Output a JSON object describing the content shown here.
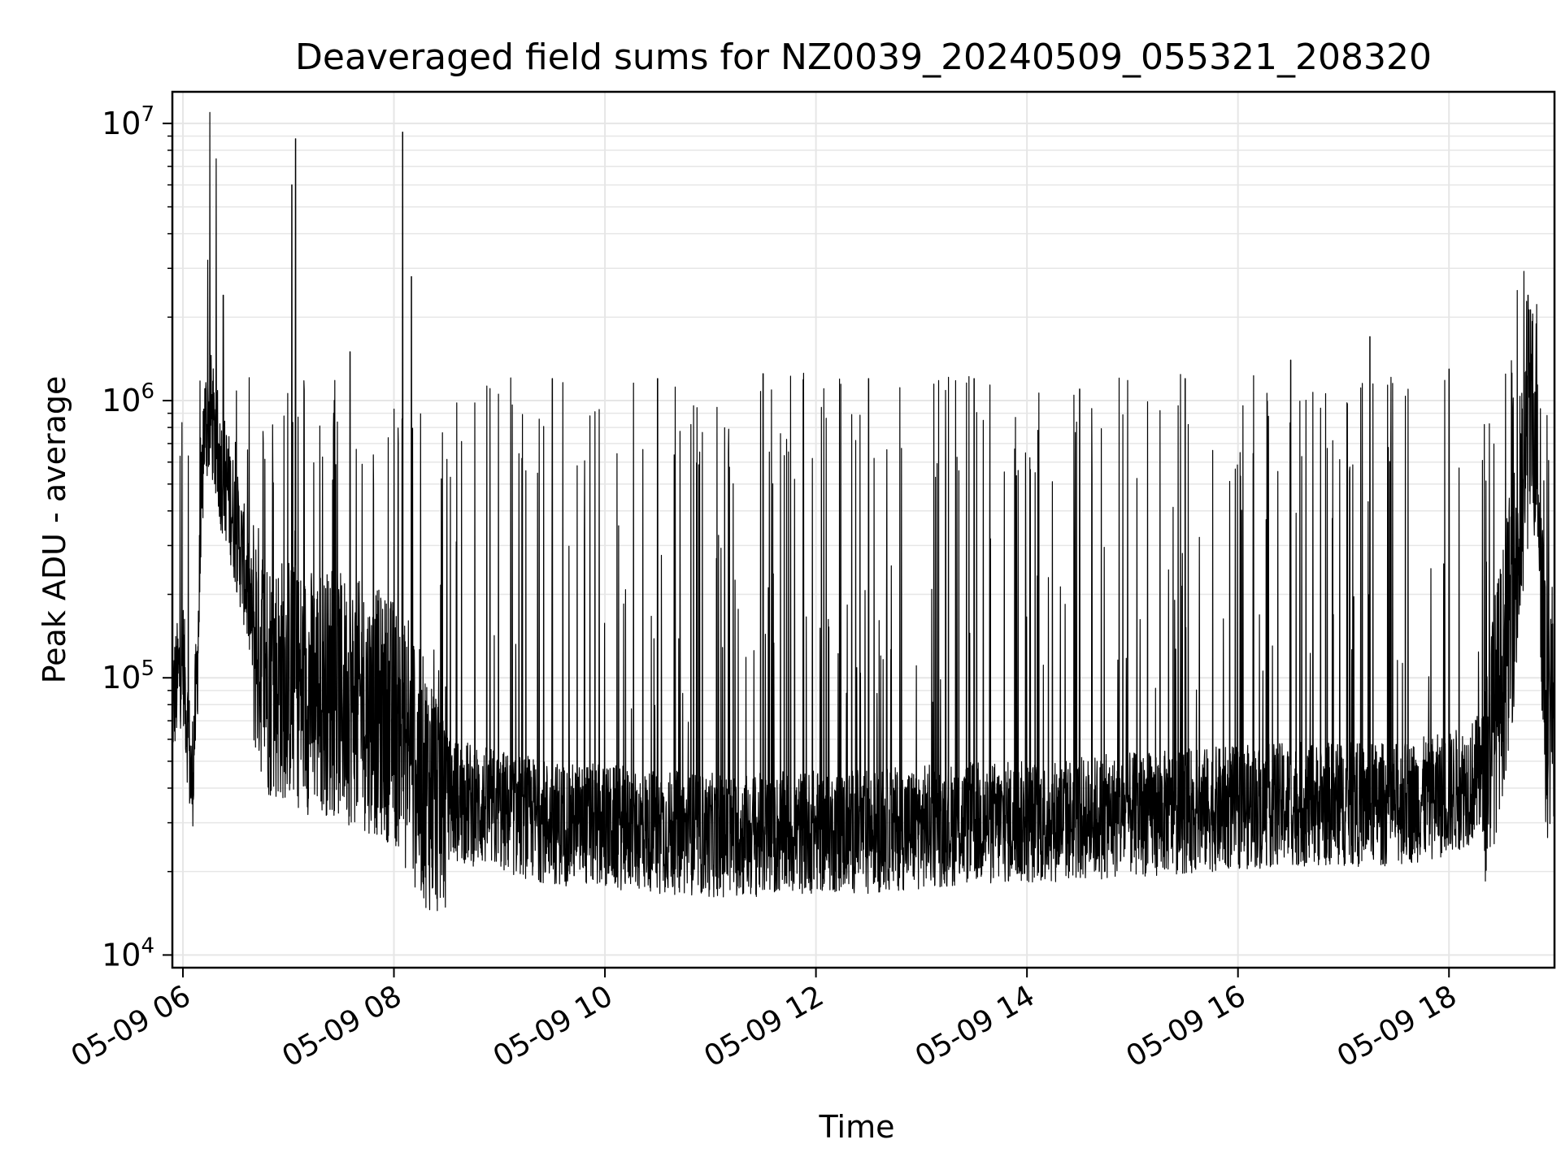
{
  "chart_data": {
    "type": "line",
    "title": "Deaveraged field sums for NZ0039_20240509_055321_208320",
    "xlabel": "Time",
    "ylabel": "Peak ADU - average",
    "yscale": "log",
    "ylim": [
      9000,
      13000000
    ],
    "xlim": [
      "05-09 05:54",
      "05-09 19:00"
    ],
    "grid": true,
    "grid_color": "#e6e6e6",
    "line_color": "#000000",
    "background": "#ffffff",
    "x_ticks": [
      "05-09 06",
      "05-09 08",
      "05-09 10",
      "05-09 12",
      "05-09 14",
      "05-09 16",
      "05-09 18"
    ],
    "y_ticks": [
      {
        "value": 10000,
        "base": "10",
        "exp": "4"
      },
      {
        "value": 100000,
        "base": "10",
        "exp": "5"
      },
      {
        "value": 1000000,
        "base": "10",
        "exp": "6"
      },
      {
        "value": 10000000,
        "base": "10",
        "exp": "7"
      }
    ],
    "series": [
      {
        "x": [
          "05-09 05:54",
          "05-09 06:00",
          "05-09 06:05",
          "05-09 06:08",
          "05-09 06:12",
          "05-09 06:16",
          "05-09 06:20",
          "05-09 06:25",
          "05-09 06:30",
          "05-09 06:35",
          "05-09 06:40",
          "05-09 06:45",
          "05-09 06:50",
          "05-09 07:00",
          "05-09 07:10",
          "05-09 07:20",
          "05-09 07:30",
          "05-09 07:40",
          "05-09 07:50",
          "05-09 08:00",
          "05-09 08:10",
          "05-09 08:20",
          "05-09 08:30",
          "05-09 08:45",
          "05-09 09:00",
          "05-09 09:30",
          "05-09 10:00",
          "05-09 10:30",
          "05-09 11:00",
          "05-09 11:30",
          "05-09 12:00",
          "05-09 12:30",
          "05-09 13:00",
          "05-09 13:30",
          "05-09 14:00",
          "05-09 14:30",
          "05-09 15:00",
          "05-09 15:30",
          "05-09 16:00",
          "05-09 16:30",
          "05-09 17:00",
          "05-09 17:30",
          "05-09 18:00",
          "05-09 18:20",
          "05-09 18:30",
          "05-09 18:40",
          "05-09 18:45",
          "05-09 18:50",
          "05-09 18:55",
          "05-09 19:00"
        ],
        "baseline": [
          80000,
          120000,
          40000,
          100000,
          800000,
          900000,
          600000,
          500000,
          350000,
          250000,
          150000,
          120000,
          100000,
          100000,
          90000,
          90000,
          85000,
          80000,
          75000,
          70000,
          50000,
          40000,
          37000,
          35000,
          33000,
          30000,
          29000,
          28000,
          27000,
          27000,
          28000,
          28000,
          29000,
          30000,
          30000,
          31000,
          32000,
          33000,
          34000,
          35000,
          35000,
          35000,
          38000,
          45000,
          100000,
          300000,
          800000,
          900000,
          70000,
          90000
        ],
        "peaks": [
          {
            "x": "05-09 06:23",
            "y": 2400000
          },
          {
            "x": "05-09 07:02",
            "y": 6000000
          },
          {
            "x": "05-09 07:04",
            "y": 8800000
          },
          {
            "x": "05-09 07:35",
            "y": 1500000
          },
          {
            "x": "05-09 08:05",
            "y": 9300000
          },
          {
            "x": "05-09 08:10",
            "y": 2800000
          },
          {
            "x": "05-09 09:30",
            "y": 1200000
          },
          {
            "x": "05-09 10:30",
            "y": 1200000
          },
          {
            "x": "05-09 11:30",
            "y": 1250000
          },
          {
            "x": "05-09 12:30",
            "y": 1200000
          },
          {
            "x": "05-09 13:30",
            "y": 1200000
          },
          {
            "x": "05-09 14:30",
            "y": 1100000
          },
          {
            "x": "05-09 15:30",
            "y": 1200000
          },
          {
            "x": "05-09 16:30",
            "y": 1400000
          },
          {
            "x": "05-09 17:15",
            "y": 1700000
          },
          {
            "x": "05-09 18:00",
            "y": 1300000
          },
          {
            "x": "05-09 18:45",
            "y": 2400000
          }
        ]
      }
    ]
  }
}
